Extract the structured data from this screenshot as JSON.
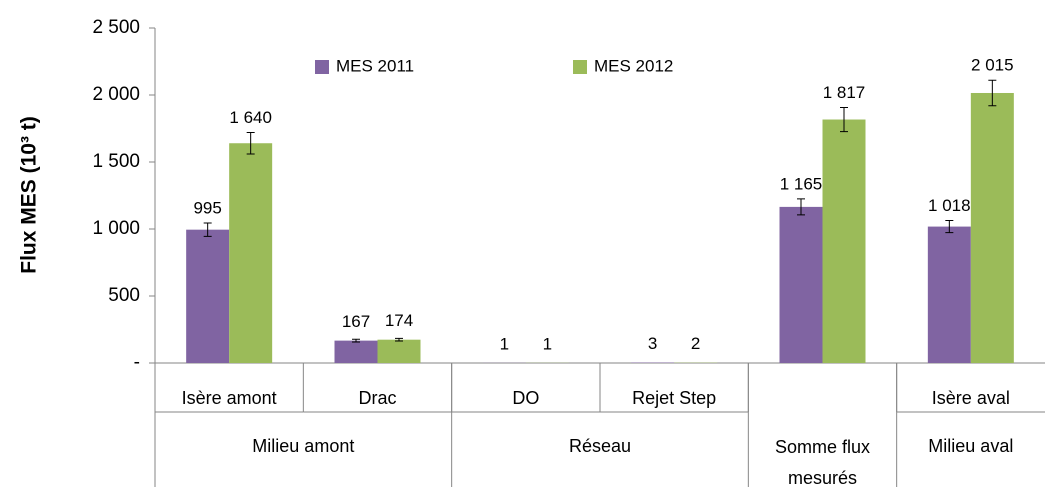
{
  "chart_data": {
    "type": "bar",
    "y_label": "Flux MES (10³ t)",
    "categories": [
      "Isère amont",
      "Drac",
      "DO",
      "Rejet Step",
      null,
      "Isère aval"
    ],
    "groups": [
      {
        "name": "Milieu amont",
        "span": 2
      },
      {
        "name": "Réseau",
        "span": 2
      },
      {
        "name": "Somme flux mesurés",
        "span": 1
      },
      {
        "name": "Milieu aval",
        "span": 1
      }
    ],
    "series": [
      {
        "name": "MES 2011",
        "color": "#8064a2",
        "values": [
          995,
          167,
          1,
          3,
          1165,
          1018
        ],
        "value_labels": [
          "995",
          "167",
          "1",
          "3",
          "1 165",
          "1 018"
        ],
        "errors": [
          50,
          10,
          0,
          0,
          60,
          45
        ]
      },
      {
        "name": "MES 2012",
        "color": "#9bbb59",
        "values": [
          1640,
          174,
          1,
          2,
          1817,
          2015
        ],
        "value_labels": [
          "1 640",
          "174",
          "1",
          "2",
          "1 817",
          "2 015"
        ],
        "errors": [
          80,
          10,
          0,
          0,
          90,
          95
        ]
      }
    ],
    "ylim": [
      0,
      2500
    ],
    "yticks": [
      {
        "value": 0,
        "label": "-"
      },
      500,
      {
        "value": 1000,
        "label": "1 000"
      },
      {
        "value": 1500,
        "label": "1 500"
      },
      {
        "value": 2000,
        "label": "2 000"
      },
      {
        "value": 2500,
        "label": "2 500"
      }
    ],
    "grid": false,
    "legend": "top"
  }
}
